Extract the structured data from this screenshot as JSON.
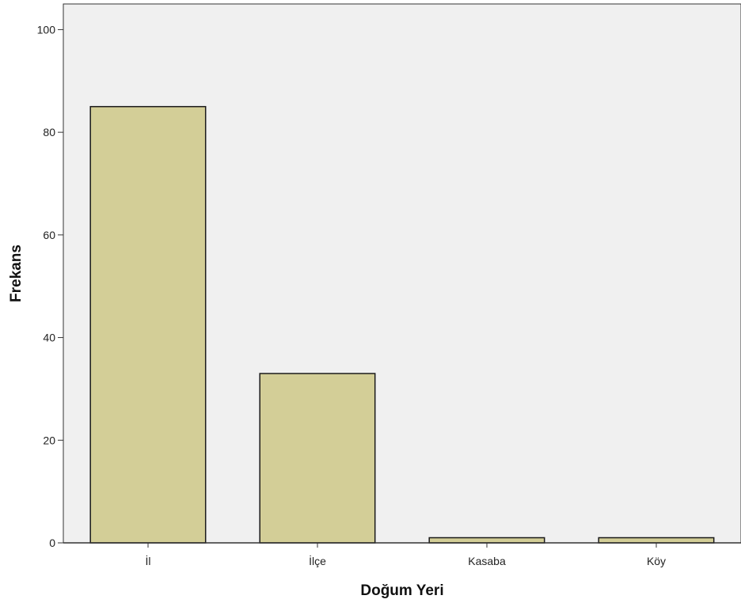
{
  "chart_data": {
    "type": "bar",
    "title": "",
    "xlabel": "Doğum Yeri",
    "ylabel": "Frekans",
    "categories": [
      "İl",
      "İlçe",
      "Kasaba",
      "Köy"
    ],
    "values": [
      85,
      33,
      1,
      1
    ],
    "ylim": [
      0,
      105
    ],
    "yticks": [
      0,
      20,
      40,
      60,
      80,
      100
    ],
    "grid": false,
    "legend": "none",
    "colors": {
      "plot_background": "#f0f0f0",
      "bar_fill": "#d3ce97",
      "bar_stroke": "#1a1a1a",
      "axis": "#333333"
    }
  }
}
